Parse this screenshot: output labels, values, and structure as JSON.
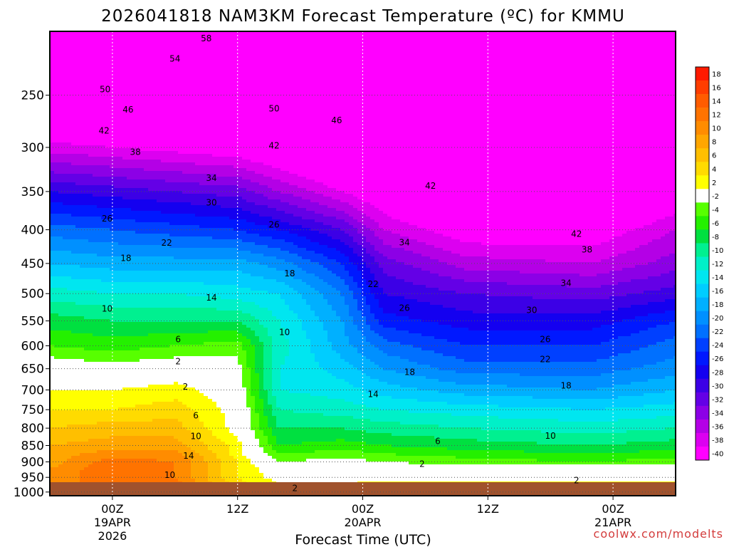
{
  "chart_data": {
    "type": "heatmap",
    "title": "2026041818 NAM3KM Forecast Temperature (ºC) for KMMU",
    "xlabel": "Forecast Time (UTC)",
    "ylabel": "",
    "credit": "coolwx.com/modelts",
    "x_ticks": [
      {
        "hour": 6,
        "lines": [
          "00Z",
          "19APR",
          "2026"
        ]
      },
      {
        "hour": 18,
        "lines": [
          "12Z"
        ]
      },
      {
        "hour": 30,
        "lines": [
          "00Z",
          "20APR"
        ]
      },
      {
        "hour": 42,
        "lines": [
          "12Z"
        ]
      },
      {
        "hour": 54,
        "lines": [
          "00Z",
          "21APR"
        ]
      }
    ],
    "x_range_hours": [
      0,
      60
    ],
    "y_pressure_ticks": [
      250,
      300,
      350,
      400,
      450,
      500,
      550,
      600,
      650,
      700,
      750,
      800,
      850,
      900,
      950,
      1000
    ],
    "y_range_hpa": [
      1013,
      200
    ],
    "y_scale": "log-pressure",
    "grid": true,
    "colorbar": {
      "boundaries": [
        18,
        16,
        14,
        12,
        10,
        8,
        6,
        4,
        2,
        -2,
        -4,
        -6,
        -8,
        -10,
        -12,
        -14,
        -16,
        -18,
        -20,
        -22,
        -24,
        -26,
        -28,
        -30,
        -32,
        -34,
        -36,
        -38,
        -40
      ],
      "colors": [
        "#ff1a00",
        "#ff3d00",
        "#ff5c00",
        "#ff7300",
        "#ff8c00",
        "#ffa600",
        "#ffbf00",
        "#ffdb00",
        "#ffff00",
        "#ffffff",
        "#57ff00",
        "#24f000",
        "#00e040",
        "#00f090",
        "#00f0c8",
        "#00e6f0",
        "#00cdff",
        "#00b0ff",
        "#0090ff",
        "#0070ff",
        "#0040ff",
        "#0018ff",
        "#1400f0",
        "#3c00e6",
        "#6400e6",
        "#8c00e6",
        "#b400e6",
        "#dc00f0",
        "#ff00ff"
      ]
    },
    "profile_levels_hpa": [
      1000,
      975,
      950,
      925,
      900,
      875,
      850,
      800,
      750,
      700,
      650,
      600,
      550,
      500,
      450,
      400,
      350,
      300,
      250,
      200
    ],
    "profiles": [
      {
        "hour": 0,
        "t": [
          12,
          12,
          11,
          10,
          9,
          9,
          8,
          6,
          4,
          2,
          0,
          -4,
          -7,
          -11,
          -16,
          -21,
          -28,
          -37,
          -47,
          -58
        ]
      },
      {
        "hour": 6,
        "t": [
          12,
          12,
          13,
          14,
          13,
          11,
          9,
          7,
          4,
          2,
          -1,
          -5,
          -8,
          -12,
          -17,
          -22,
          -29,
          -38,
          -48,
          -58
        ]
      },
      {
        "hour": 12,
        "t": [
          13,
          13,
          12,
          12,
          12,
          11,
          9,
          7,
          5,
          3,
          0,
          -4,
          -8,
          -12,
          -17,
          -23,
          -30,
          -39,
          -49,
          -58
        ]
      },
      {
        "hour": 18,
        "t": [
          6,
          5,
          4,
          4,
          4,
          3,
          3,
          1,
          1,
          0,
          -1,
          -3,
          -8,
          -13,
          -17,
          -24,
          -31,
          -40,
          -50,
          -58
        ]
      },
      {
        "hour": 22,
        "t": [
          3,
          2,
          1,
          0,
          -2,
          -4,
          -6,
          -8,
          -10,
          -12,
          -12,
          -11,
          -12,
          -14,
          -19,
          -26,
          -34,
          -42,
          -51,
          -59
        ]
      },
      {
        "hour": 28,
        "t": [
          3,
          2,
          1,
          0,
          -1,
          -3,
          -5,
          -8,
          -11,
          -13,
          -15,
          -17,
          -18,
          -20,
          -24,
          -30,
          -38,
          -45,
          -53,
          -60
        ]
      },
      {
        "hour": 32,
        "t": [
          4,
          3,
          1,
          0,
          -2,
          -4,
          -6,
          -9,
          -12,
          -15,
          -18,
          -21,
          -25,
          -28,
          -31,
          -36,
          -41,
          -47,
          -53,
          -60
        ]
      },
      {
        "hour": 40,
        "t": [
          4,
          3,
          1,
          0,
          -3,
          -5,
          -7,
          -10,
          -13,
          -17,
          -21,
          -24,
          -27,
          -30,
          -35,
          -40,
          -45,
          -49,
          -55,
          -60
        ]
      },
      {
        "hour": 52,
        "t": [
          4,
          3,
          1,
          0,
          -4,
          -6,
          -8,
          -11,
          -14,
          -18,
          -21,
          -24,
          -27,
          -31,
          -36,
          -40,
          -45,
          -50,
          -56,
          -60
        ]
      },
      {
        "hour": 60,
        "t": [
          4,
          3,
          1,
          0,
          -3,
          -5,
          -7,
          -10,
          -13,
          -16,
          -19,
          -21,
          -24,
          -29,
          -33,
          -36,
          -41,
          -47,
          -54,
          -60
        ]
      }
    ],
    "contour_labels": [
      {
        "value": "58",
        "hour": 15.0,
        "hpa": 205
      },
      {
        "value": "54",
        "hour": 12.0,
        "hpa": 220
      },
      {
        "value": "50",
        "hour": 5.3,
        "hpa": 245
      },
      {
        "value": "50",
        "hour": 21.5,
        "hpa": 262
      },
      {
        "value": "46",
        "hour": 7.5,
        "hpa": 263
      },
      {
        "value": "46",
        "hour": 27.5,
        "hpa": 273
      },
      {
        "value": "42",
        "hour": 5.2,
        "hpa": 283
      },
      {
        "value": "42",
        "hour": 21.5,
        "hpa": 298
      },
      {
        "value": "42",
        "hour": 36.5,
        "hpa": 343
      },
      {
        "value": "42",
        "hour": 50.5,
        "hpa": 406
      },
      {
        "value": "38",
        "hour": 8.2,
        "hpa": 305
      },
      {
        "value": "38",
        "hour": 51.5,
        "hpa": 429
      },
      {
        "value": "34",
        "hour": 15.5,
        "hpa": 334
      },
      {
        "value": "34",
        "hour": 34.0,
        "hpa": 418
      },
      {
        "value": "34",
        "hour": 49.5,
        "hpa": 482
      },
      {
        "value": "30",
        "hour": 15.5,
        "hpa": 364
      },
      {
        "value": "30",
        "hour": 46.2,
        "hpa": 530
      },
      {
        "value": "26",
        "hour": 5.5,
        "hpa": 385
      },
      {
        "value": "26",
        "hour": 21.5,
        "hpa": 393
      },
      {
        "value": "26",
        "hour": 34.0,
        "hpa": 526
      },
      {
        "value": "26",
        "hour": 47.5,
        "hpa": 587
      },
      {
        "value": "22",
        "hour": 11.2,
        "hpa": 419
      },
      {
        "value": "22",
        "hour": 31.0,
        "hpa": 484
      },
      {
        "value": "22",
        "hour": 47.5,
        "hpa": 629
      },
      {
        "value": "18",
        "hour": 7.3,
        "hpa": 442
      },
      {
        "value": "18",
        "hour": 23.0,
        "hpa": 466
      },
      {
        "value": "18",
        "hour": 34.5,
        "hpa": 658
      },
      {
        "value": "18",
        "hour": 49.5,
        "hpa": 690
      },
      {
        "value": "14",
        "hour": 15.5,
        "hpa": 507
      },
      {
        "value": "14",
        "hour": 31.0,
        "hpa": 711
      },
      {
        "value": "14",
        "hour": 13.3,
        "hpa": 881
      },
      {
        "value": "10",
        "hour": 5.5,
        "hpa": 527
      },
      {
        "value": "10",
        "hour": 22.5,
        "hpa": 572
      },
      {
        "value": "10",
        "hour": 48.0,
        "hpa": 822
      },
      {
        "value": "10",
        "hour": 11.5,
        "hpa": 943
      },
      {
        "value": "10",
        "hour": 14.0,
        "hpa": 823
      },
      {
        "value": "6",
        "hour": 12.3,
        "hpa": 587
      },
      {
        "value": "6",
        "hour": 14.0,
        "hpa": 766
      },
      {
        "value": "6",
        "hour": 37.2,
        "hpa": 837
      },
      {
        "value": "2",
        "hour": 12.3,
        "hpa": 634
      },
      {
        "value": "2",
        "hour": 13.0,
        "hpa": 692
      },
      {
        "value": "2",
        "hour": 35.7,
        "hpa": 907
      },
      {
        "value": "2",
        "hour": 23.5,
        "hpa": 987
      },
      {
        "value": "2",
        "hour": 50.5,
        "hpa": 960
      }
    ]
  }
}
